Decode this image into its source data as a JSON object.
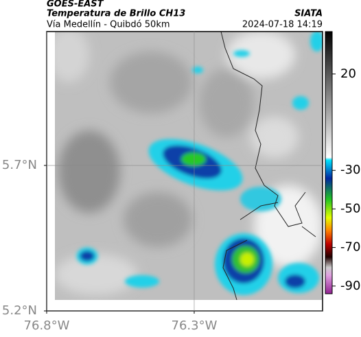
{
  "header": {
    "source": "GOES-EAST",
    "title": "Temperatura de Brillo CH13",
    "org": "SIATA",
    "subtitle": "Vía Medellín - Quibdó 50km",
    "timestamp": "2024-07-18 14:19"
  },
  "map": {
    "xlim": [
      -76.8,
      -75.865
    ],
    "ylim": [
      5.2,
      6.16
    ],
    "xticks": [
      {
        "value": -76.8,
        "label": "76.8°W"
      },
      {
        "value": -76.3,
        "label": "76.3°W"
      }
    ],
    "yticks": [
      {
        "value": 5.2,
        "label": "5.2°N"
      },
      {
        "value": 5.7,
        "label": "5.7°N"
      }
    ],
    "grid": true
  },
  "colorbar": {
    "lim": [
      42,
      -94
    ],
    "ticks": [
      20,
      -30,
      -50,
      -70,
      -90
    ]
  }
}
